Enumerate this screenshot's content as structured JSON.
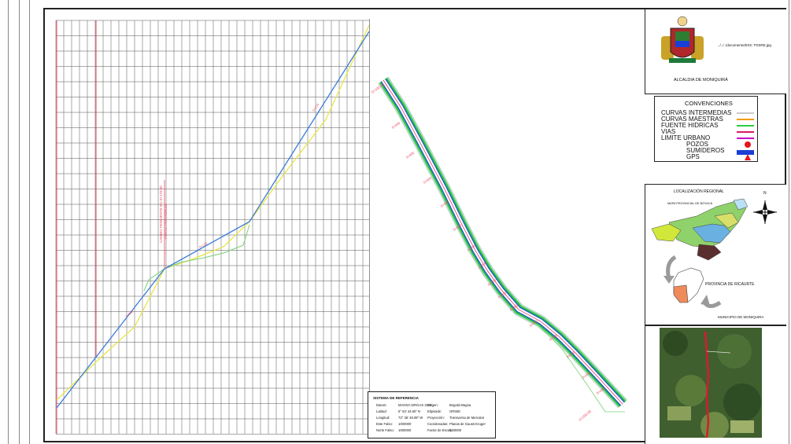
{
  "title_block": {
    "logo_caption": "ALCALDIA DE MONIQUIRÁ",
    "file_path": "../../../documento/ESC TOSRE.jpg"
  },
  "conventions": {
    "heading": "CONVENCIONES",
    "items": [
      {
        "label": "CURVAS INTERMEDIAS",
        "color": "#c8c8c8"
      },
      {
        "label": "CURVAS MAESTRAS",
        "color": "#f39c12"
      },
      {
        "label": "FUENTE HIDRICAS",
        "color": "#2ecc40"
      },
      {
        "label": "VIAS",
        "color": "#d81b60"
      },
      {
        "label": "LIMITE URBANO",
        "color": "#c800c8"
      },
      {
        "label": "POZOS",
        "color": "#e8151b"
      },
      {
        "label": "SUMIDEROS",
        "color": "#1a3fd6"
      },
      {
        "label": "GPS",
        "color": "#e8151b"
      }
    ]
  },
  "location": {
    "title": "LOCALIZACIÓN REGIONAL",
    "map_label": "MAPA PROVINCIAL DE BOYACÁ",
    "province_label": "PROVINCIA DE RICAURTE",
    "municipality_label": "MUNICIPIO DE MONIQUIRA",
    "north_label": "N"
  },
  "reference": {
    "heading": "SISTEMA DE REFERENCIA",
    "left": [
      {
        "k": "Datum:",
        "v": "MAGNA SIRGAS 3116"
      },
      {
        "k": "Latitud:",
        "v": "5° 53' 44.60\" N"
      },
      {
        "k": "Longitud:",
        "v": "73° 36' 49.08\" W"
      },
      {
        "k": "Este Falso:",
        "v": "1000000"
      },
      {
        "k": "Norte Falso:",
        "v": "1000000"
      }
    ],
    "right": [
      {
        "k": "Origen:",
        "v": "Bogotá Magna"
      },
      {
        "k": "Elipsoide:",
        "v": "GRS80"
      },
      {
        "k": "Proyección:",
        "v": "Transversa de Mercator"
      },
      {
        "k": "Coordenadas:",
        "v": "Planas de Gauss-Kruger"
      },
      {
        "k": "Factor de Escala:",
        "v": "1.00000"
      }
    ]
  },
  "profile": {
    "annotation_1": "CAMBIO PENDIENTE 8% 0+170.00",
    "annotation_2": "PUNTO PIV 0+096.66"
  },
  "plan": {
    "station_start": "0+100.00",
    "station_end": "0+250.00"
  }
}
